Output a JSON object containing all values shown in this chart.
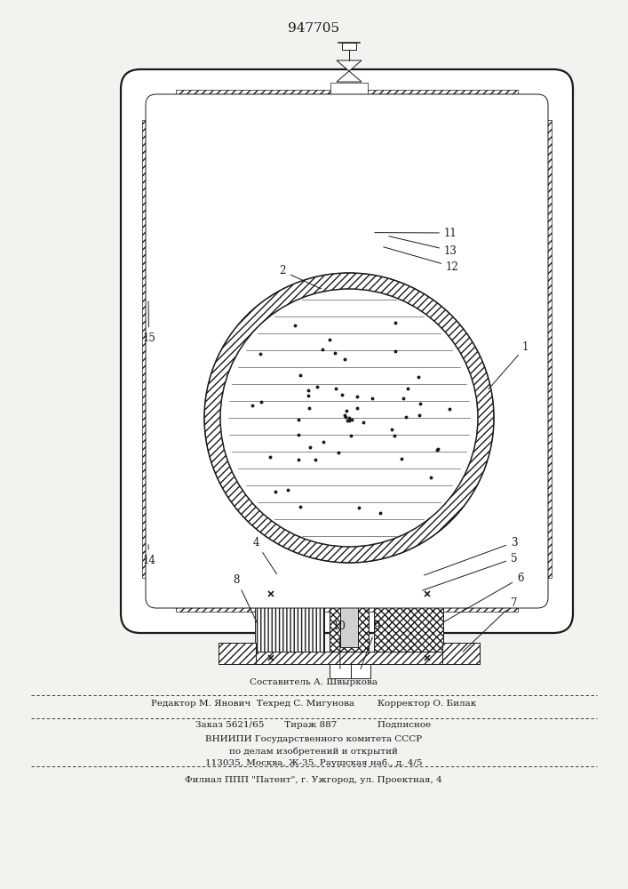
{
  "title": "947705",
  "bg_color": "#f2f2ee",
  "line_color": "#1a1a1a",
  "footer": {
    "line1": "Составитель А. Швыркова",
    "line2": "Редактор М. Янович  Техред С. Мигунова        Корректор О. Билак",
    "line3": "Заказ 5621/65       Тираж 887              Подписное",
    "line4": "ВНИИПИ Государственного комитета СССР",
    "line5": "по делам изобретений и открытий",
    "line6": "113035, Москва, Ж-35, Раушская наб., д. 4/5",
    "line7": "Филиал ППП \"Патент\", г. Ужгород, ул. Проектная, 4"
  }
}
